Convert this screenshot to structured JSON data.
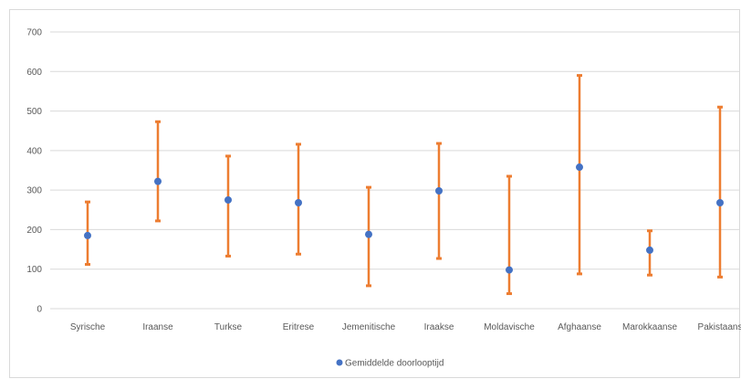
{
  "chart_data": {
    "type": "scatter",
    "categories": [
      "Syrische",
      "Iraanse",
      "Turkse",
      "Eritrese",
      "Jemenitische",
      "Iraakse",
      "Moldavische",
      "Afghaanse",
      "Marokkaanse",
      "Pakistaans"
    ],
    "series": [
      {
        "name": "Gemiddelde doorlooptijd",
        "values": [
          185,
          322,
          275,
          268,
          188,
          298,
          98,
          358,
          148,
          268
        ],
        "error_low": [
          112,
          222,
          133,
          138,
          58,
          127,
          38,
          88,
          85,
          80
        ],
        "error_high": [
          270,
          473,
          386,
          416,
          307,
          418,
          335,
          590,
          197,
          510
        ]
      }
    ],
    "ylim": [
      0,
      700
    ],
    "yticks": [
      0,
      100,
      200,
      300,
      400,
      500,
      600,
      700
    ],
    "grid": true,
    "legend": "bottom",
    "colors": {
      "marker": "#4472c4",
      "error_bar": "#ed7d31",
      "grid": "#d9d9d9",
      "text": "#595959"
    }
  }
}
